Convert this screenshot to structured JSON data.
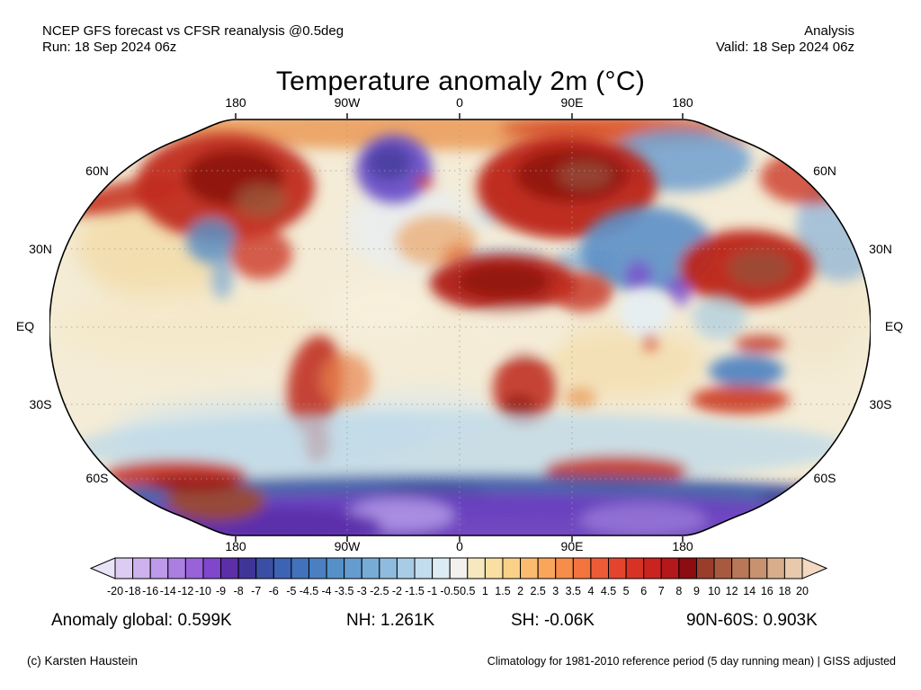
{
  "header": {
    "left_line1": "NCEP GFS forecast vs CFSR reanalysis @0.5deg",
    "left_line2": "Run: 18 Sep 2024 06z",
    "right_line1": "Analysis",
    "right_line2": "Valid: 18 Sep 2024 06z"
  },
  "title": "Temperature anomaly 2m (°C)",
  "map": {
    "top_labels": [
      "180",
      "90W",
      "0",
      "90E",
      "180"
    ],
    "bottom_labels": [
      "180",
      "90W",
      "0",
      "90E",
      "180"
    ],
    "left_labels": [
      "60N",
      "30N",
      "EQ",
      "30S",
      "60S"
    ],
    "right_labels": [
      "60N",
      "30N",
      "EQ",
      "30S",
      "60S"
    ]
  },
  "colorbar": {
    "tick_labels": [
      "-20",
      "-18",
      "-16",
      "-14",
      "-12",
      "-10",
      "-9",
      "-8",
      "-7",
      "-6",
      "-5",
      "-4.5",
      "-4",
      "-3.5",
      "-3",
      "-2.5",
      "-2",
      "-1.5",
      "-1",
      "-0.5",
      "0.5",
      "1",
      "1.5",
      "2",
      "2.5",
      "3",
      "3.5",
      "4",
      "4.5",
      "5",
      "6",
      "7",
      "8",
      "9",
      "10",
      "12",
      "14",
      "16",
      "18",
      "20"
    ],
    "cell_colors": [
      "#dccbf2",
      "#cdb2ee",
      "#bd99ea",
      "#ab7ee2",
      "#9962d8",
      "#8046cc",
      "#5c2ea8",
      "#3f3598",
      "#3a4fa4",
      "#3d63b4",
      "#4272bc",
      "#4a80c2",
      "#5690c8",
      "#649ccf",
      "#77acd7",
      "#8ebbdf",
      "#a8cce6",
      "#c2ddee",
      "#dcecf5",
      "#f2f1ed",
      "#f6e9c0",
      "#f9dfa2",
      "#fbd188",
      "#fcbc70",
      "#faa55c",
      "#f78d4a",
      "#f3743f",
      "#ed5b36",
      "#e4442e",
      "#d83227",
      "#c92420",
      "#b5181a",
      "#8c0c12",
      "#9a3d2a",
      "#a85a40",
      "#b87758",
      "#c89270",
      "#d8ae8c",
      "#e8c9ac"
    ],
    "left_arrow_color": "#e9e3f8",
    "right_arrow_color": "#f3d9c2"
  },
  "stats": {
    "global": "Anomaly global: 0.599K",
    "nh": "NH: 1.261K",
    "sh": "SH: -0.06K",
    "n90s60": "90N-60S: 0.903K"
  },
  "footer": {
    "left": "(c) Karsten Haustein",
    "right": "Climatology for 1981-2010 reference period (5 day running mean) | GISS adjusted"
  },
  "chart_data": {
    "type": "heatmap",
    "title": "Temperature anomaly 2m (°C)",
    "units": "°C",
    "projection": "Robinson world map",
    "colorbar_scale": [
      -20,
      -18,
      -16,
      -14,
      -12,
      -10,
      -9,
      -8,
      -7,
      -6,
      -5,
      -4.5,
      -4,
      -3.5,
      -3,
      -2.5,
      -2,
      -1.5,
      -1,
      -0.5,
      0.5,
      1,
      1.5,
      2,
      2.5,
      3,
      3.5,
      4,
      4.5,
      5,
      6,
      7,
      8,
      9,
      10,
      12,
      14,
      16,
      18,
      20
    ],
    "summary_stats": {
      "anomaly_global_K": 0.599,
      "NH_K": 1.261,
      "SH_K": -0.06,
      "90N-60S_K": 0.903
    },
    "longitude_ticks": [
      "180",
      "90W",
      "0",
      "90E",
      "180"
    ],
    "latitude_ticks": [
      "60N",
      "30N",
      "EQ",
      "30S",
      "60S"
    ]
  }
}
